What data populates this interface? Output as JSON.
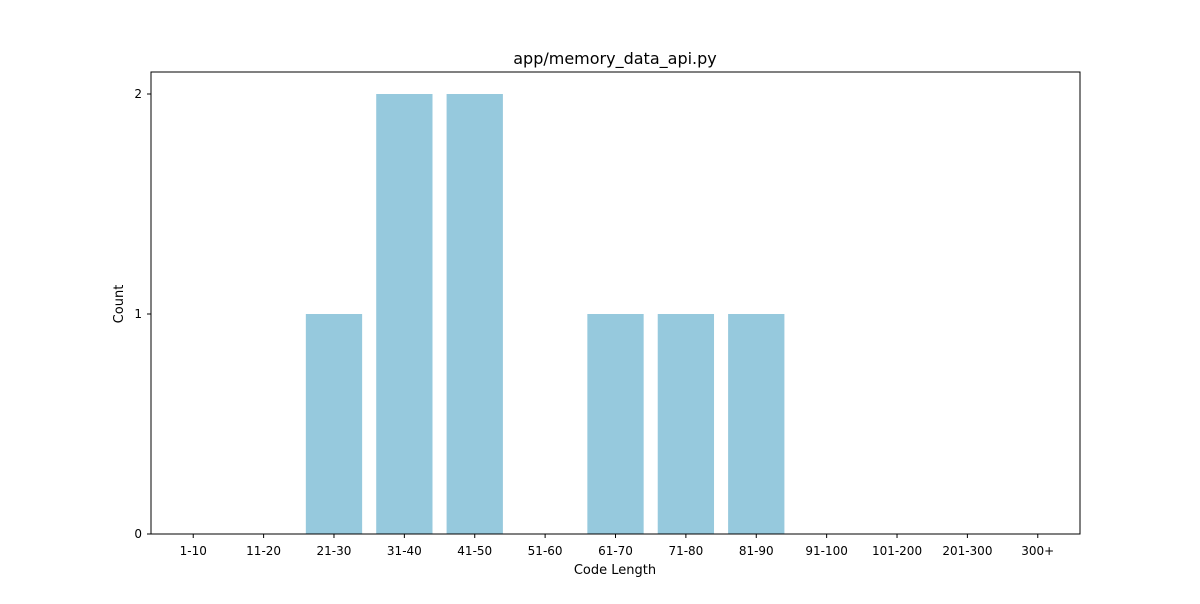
{
  "chart_data": {
    "type": "bar",
    "title": "app/memory_data_api.py",
    "xlabel": "Code Length",
    "ylabel": "Count",
    "categories": [
      "1-10",
      "11-20",
      "21-30",
      "31-40",
      "41-50",
      "51-60",
      "61-70",
      "71-80",
      "81-90",
      "91-100",
      "101-200",
      "201-300",
      "300+"
    ],
    "values": [
      0,
      0,
      1,
      2,
      2,
      0,
      1,
      1,
      1,
      0,
      0,
      0,
      0
    ],
    "yticks": [
      0,
      1,
      2
    ],
    "ylim": [
      0,
      2.1
    ],
    "bar_color": "#96c9dd",
    "grid": false,
    "legend": "none"
  }
}
